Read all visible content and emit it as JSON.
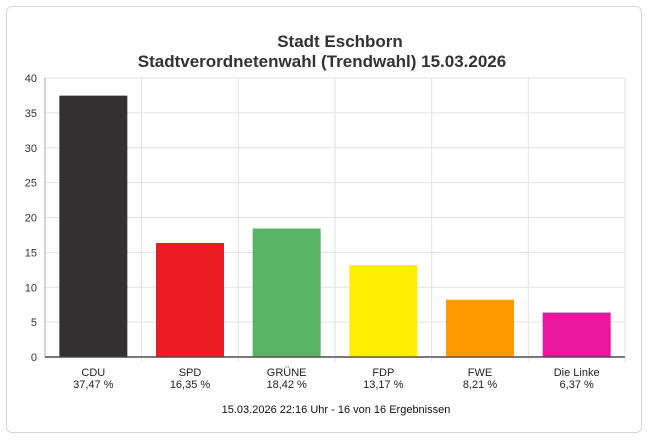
{
  "chart_data": {
    "type": "bar",
    "title": "Stadt Eschborn",
    "subtitle": "Stadtverordnetenwahl (Trendwahl) 15.03.2026",
    "categories": [
      "CDU",
      "SPD",
      "GRÜNE",
      "FDP",
      "FWE",
      "Die Linke"
    ],
    "values": [
      37.47,
      16.35,
      18.42,
      13.17,
      8.21,
      6.37
    ],
    "value_labels": [
      "37,47 %",
      "16,35 %",
      "18,42 %",
      "13,17 %",
      "8,21 %",
      "6,37 %"
    ],
    "colors": [
      "#333132",
      "#ed1c24",
      "#58b463",
      "#ffed00",
      "#ff9900",
      "#e8179e"
    ],
    "ylim": [
      0,
      40
    ],
    "yticks": [
      0,
      5,
      10,
      15,
      20,
      25,
      30,
      35,
      40
    ],
    "grid": true,
    "footer": "15.03.2026 22:16 Uhr - 16 von 16 Ergebnissen"
  }
}
